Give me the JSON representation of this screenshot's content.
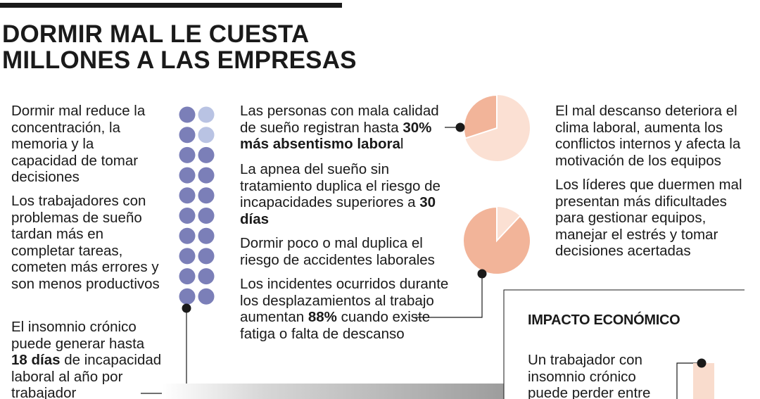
{
  "headline": {
    "line1": "DORMIR MAL LE CUESTA",
    "line2": "MILLONES A LAS EMPRESAS"
  },
  "column_left": {
    "p1": "Dormir mal reduce la concentración, la memoria y la capacidad de tomar decisiones",
    "p2": "Los trabajadores con problemas de sueño tardan más en completar tareas, cometen más errores y son menos productivos",
    "p3_pre": "El insomnio crónico puede generar hasta ",
    "p3_bold": "18 días",
    "p3_post": " de incapacidad laboral al año por trabajador"
  },
  "column_middle": {
    "p1_pre": "Las personas con mala calidad de sueño registran hasta ",
    "p1_bold": "30% más absentismo labora",
    "p1_post": "l",
    "p2_pre": "La apnea del sueño sin tratamiento duplica el riesgo de incapacidades superiores a ",
    "p2_bold": "30 días",
    "p3": "Dormir poco o mal duplica el riesgo de accidentes laborales",
    "p4_pre": "Los incidentes ocurridos durante los desplazamientos al trabajo aumentan ",
    "p4_bold": "88%",
    "p4_post": " cuando existe fatiga o falta de descanso"
  },
  "column_right": {
    "p1": "El mal descanso deteriora el clima laboral, aumenta los conflictos internos y afecta la motivación de los equipos",
    "p2": "Los líderes que duermen mal presentan más dificultades para gestionar equipos, manejar el estrés y tomar decisiones acertadas"
  },
  "impact": {
    "title": "IMPACTO ECONÓMICO",
    "text": "Un trabajador con insomnio crónico puede perder entre"
  },
  "pies": {
    "absenteeism_fraction": 0.3,
    "incident_fraction": 0.88
  },
  "dots": {
    "dark_count": 18,
    "light_count": 2
  },
  "colors": {
    "text": "#1a1a1a",
    "dot_dark": "#7b7fb8",
    "dot_light": "#b9c3e3",
    "pie_main": "#f2b499",
    "pie_light": "#fbe0d3"
  }
}
